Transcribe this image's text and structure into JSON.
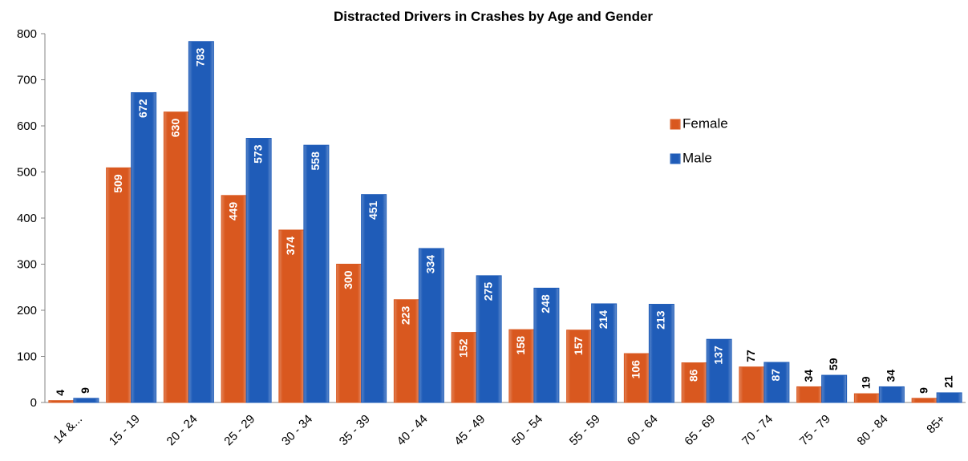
{
  "chart_data": {
    "type": "bar",
    "title": "Distracted Drivers in Crashes by Age and Gender",
    "categories": [
      "14 &...",
      "15 - 19",
      "20 - 24",
      "25 - 29",
      "30 - 34",
      "35 - 39",
      "40 - 44",
      "45 - 49",
      "50 - 54",
      "55 - 59",
      "60 - 64",
      "65 - 69",
      "70 - 74",
      "75 - 79",
      "80 - 84",
      "85+"
    ],
    "series": [
      {
        "name": "Female",
        "color": "#d9581f",
        "values": [
          4,
          509,
          630,
          449,
          374,
          300,
          223,
          152,
          158,
          157,
          106,
          86,
          77,
          34,
          19,
          9
        ]
      },
      {
        "name": "Male",
        "color": "#1f5cb8",
        "values": [
          9,
          672,
          783,
          573,
          558,
          451,
          334,
          275,
          248,
          214,
          213,
          137,
          87,
          59,
          34,
          21
        ]
      }
    ],
    "ylim": [
      0,
      800
    ],
    "yticks": [
      0,
      100,
      200,
      300,
      400,
      500,
      600,
      700,
      800
    ],
    "grid": false,
    "legend": "right"
  }
}
